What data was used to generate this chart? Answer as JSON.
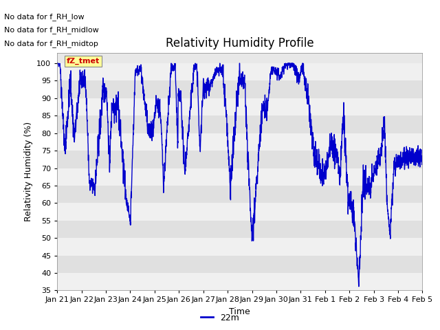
{
  "title": "Relativity Humidity Profile",
  "ylabel": "Relativity Humidity (%)",
  "xlabel": "Time",
  "line_color": "#0000cc",
  "line_width": 1.0,
  "ylim": [
    35,
    103
  ],
  "yticks": [
    35,
    40,
    45,
    50,
    55,
    60,
    65,
    70,
    75,
    80,
    85,
    90,
    95,
    100
  ],
  "background_color": "#ffffff",
  "plot_bg_color": "#e8e8e8",
  "legend_label": "22m",
  "no_data_texts": [
    "No data for f_RH_low",
    "No data for f_RH_midlow",
    "No data for f_RH_midtop"
  ],
  "tooltip_text": "fZ_tmet",
  "tooltip_color": "#cc0000",
  "tooltip_bg": "#ffff99",
  "x_tick_labels": [
    "Jan 21",
    "Jan 22",
    "Jan 23",
    "Jan 24",
    "Jan 25",
    "Jan 26",
    "Jan 27",
    "Jan 28",
    "Jan 29",
    "Jan 30",
    "Jan 31",
    "Feb 1",
    "Feb 2",
    "Feb 3",
    "Feb 4",
    "Feb 5"
  ],
  "num_points": 3360,
  "band_colors": [
    "#f0f0f0",
    "#e0e0e0"
  ]
}
